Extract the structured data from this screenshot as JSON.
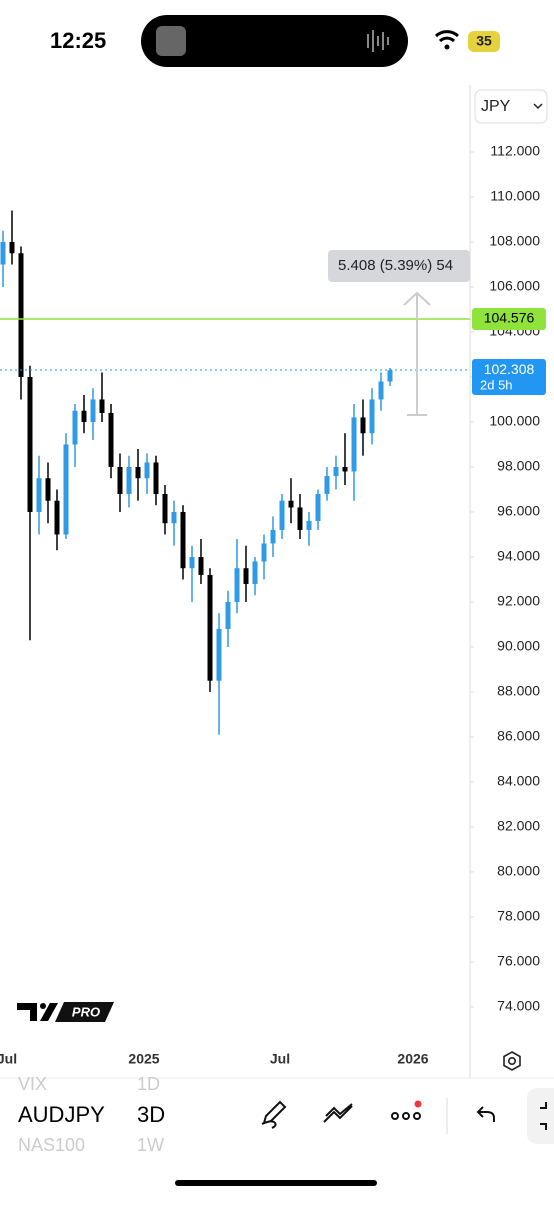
{
  "status_bar": {
    "time": "12:25",
    "battery": "35"
  },
  "currency": "JPY",
  "chart_data": {
    "type": "candlestick",
    "open": [
      107,
      108,
      107.5,
      102,
      96,
      97.5,
      96.5,
      95,
      99,
      100.5,
      100,
      101,
      100.4,
      98,
      96.8,
      98,
      97.5,
      98.2,
      96.8,
      95.5,
      96,
      93.5,
      94,
      93.2,
      88.5,
      90.8,
      92,
      93.5,
      92.8,
      93.8,
      94.6,
      95.2,
      96.5,
      96.2,
      95.2,
      95.6,
      96.8,
      97.6,
      98,
      97.8,
      100.2,
      99.5,
      101,
      101.8
    ],
    "high": [
      108.5,
      109.4,
      107.8,
      102.5,
      98.5,
      98.2,
      97,
      99.5,
      100.8,
      101.2,
      101.5,
      102.2,
      100.8,
      98.6,
      98.5,
      98.8,
      98.6,
      98.5,
      97.2,
      96.5,
      96.3,
      94.5,
      94.8,
      93.5,
      91.5,
      92.5,
      94.8,
      94.5,
      94,
      95,
      95.8,
      96.8,
      97.5,
      96.8,
      96,
      97,
      98,
      98.5,
      99.5,
      100.8,
      101,
      101.5,
      102.2,
      102.4
    ],
    "low": [
      106,
      107,
      101,
      90.3,
      95,
      95.5,
      94.3,
      94.8,
      98,
      99.5,
      99.2,
      100,
      97.5,
      96,
      96.2,
      96.5,
      96.8,
      96.3,
      95,
      94.5,
      93,
      92,
      92.8,
      88,
      86.1,
      90,
      91.5,
      92,
      92.3,
      93,
      94,
      94.8,
      95.5,
      94.8,
      94.5,
      95.2,
      96.5,
      97,
      97.2,
      96.5,
      98.5,
      99,
      100.5,
      101.6
    ],
    "close": [
      108,
      107.5,
      102,
      96,
      97.5,
      96.5,
      95,
      99,
      100.5,
      100,
      101,
      100.4,
      98,
      96.8,
      98,
      97.5,
      98.2,
      96.8,
      95.5,
      96,
      93.5,
      94,
      93.2,
      88.5,
      90.8,
      92,
      93.5,
      92.8,
      93.8,
      94.6,
      95.2,
      96.5,
      96.2,
      95.2,
      95.6,
      96.8,
      97.6,
      98,
      97.8,
      100.2,
      99.5,
      101,
      101.8,
      102.3
    ],
    "up_color": "#2f9be6",
    "down_color": "#000000",
    "ylim": [
      72.53,
      115.2
    ],
    "yticks": [
      {
        "value": 74,
        "label": "74.000"
      },
      {
        "value": 76,
        "label": "76.000"
      },
      {
        "value": 78,
        "label": "78.000"
      },
      {
        "value": 80,
        "label": "80.000"
      },
      {
        "value": 82,
        "label": "82.000"
      },
      {
        "value": 84,
        "label": "84.000"
      },
      {
        "value": 86,
        "label": "86.000"
      },
      {
        "value": 88,
        "label": "88.000"
      },
      {
        "value": 90,
        "label": "90.000"
      },
      {
        "value": 92,
        "label": "92.000"
      },
      {
        "value": 94,
        "label": "94.000"
      },
      {
        "value": 96,
        "label": "96.000"
      },
      {
        "value": 98,
        "label": "98.000"
      },
      {
        "value": 100,
        "label": "100.000"
      },
      {
        "value": 102,
        "label": "102.000"
      },
      {
        "value": 104,
        "label": "104.000"
      },
      {
        "value": 106,
        "label": "106.000"
      },
      {
        "value": 108,
        "label": "108.000"
      },
      {
        "value": 110,
        "label": "110.000"
      },
      {
        "value": 112,
        "label": "112.000"
      }
    ],
    "x_labels": [
      "Jul",
      "2025",
      "Jul",
      "2026"
    ],
    "price_line": {
      "value": 104.576,
      "color": "#8fe33a"
    },
    "last_price": {
      "value": 102.308,
      "countdown": "2d 5h",
      "color": "#2196f3"
    },
    "measure": "5.408 (5.39%) 54"
  },
  "logo": "PRO",
  "toolbar": {
    "symbols": [
      "VIX",
      "AUDJPY",
      "NAS100"
    ],
    "intervals": [
      "1D",
      "3D",
      "1W"
    ]
  }
}
